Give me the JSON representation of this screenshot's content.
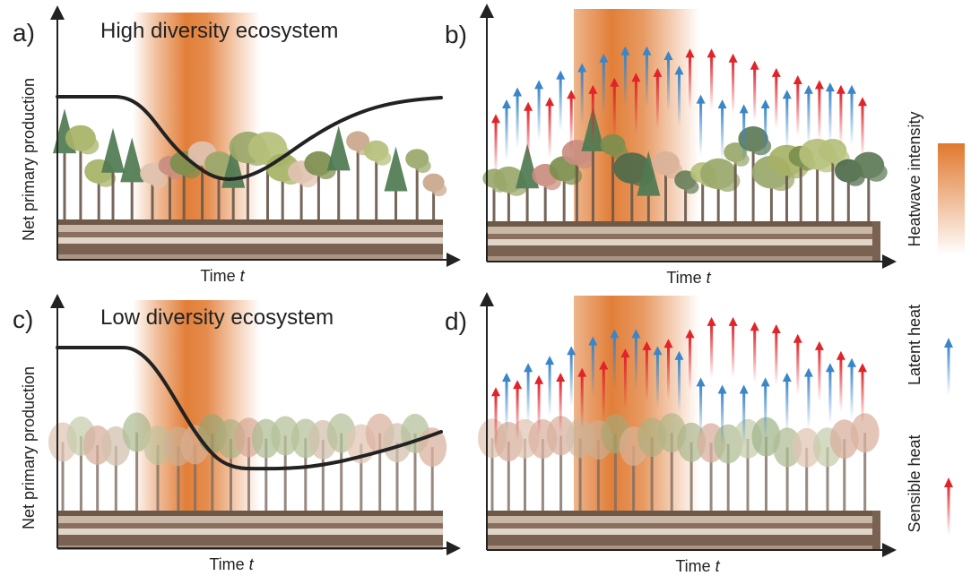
{
  "panels": [
    {
      "letter": "a)",
      "title": "High diversity ecosystem",
      "ylabel": "Net primary production",
      "xlabel": "Time",
      "xvar": "t"
    },
    {
      "letter": "b)",
      "title": "",
      "ylabel": "",
      "xlabel": "Time",
      "xvar": "t"
    },
    {
      "letter": "c)",
      "title": "Low diversity ecosystem",
      "ylabel": "Net primary production",
      "xlabel": "Time",
      "xvar": "t"
    },
    {
      "letter": "d)",
      "title": "",
      "ylabel": "",
      "xlabel": "Time",
      "xvar": "t"
    }
  ],
  "legend": {
    "heatwave": "Heatwave intensity",
    "latent": "Latent heat",
    "sensible": "Sensible heat"
  },
  "colors": {
    "heatwave": "#e0782e",
    "latent": "#3a86c8",
    "sensible": "#e0242a",
    "curve": "#222222",
    "soil": "#7a6252"
  },
  "flux_b": [
    {
      "type": "sensible",
      "level": 0.28
    },
    {
      "type": "latent",
      "level": 0.4
    },
    {
      "type": "latent",
      "level": 0.5
    },
    {
      "type": "sensible",
      "level": 0.38
    },
    {
      "type": "latent",
      "level": 0.56
    },
    {
      "type": "sensible",
      "level": 0.42
    },
    {
      "type": "latent",
      "level": 0.64
    },
    {
      "type": "sensible",
      "level": 0.48
    },
    {
      "type": "latent",
      "level": 0.7
    },
    {
      "type": "sensible",
      "level": 0.52
    },
    {
      "type": "latent",
      "level": 0.78
    },
    {
      "type": "sensible",
      "level": 0.58
    },
    {
      "type": "latent",
      "level": 0.84
    },
    {
      "type": "sensible",
      "level": 0.62
    },
    {
      "type": "latent",
      "level": 0.84
    },
    {
      "type": "sensible",
      "level": 0.66
    },
    {
      "type": "latent",
      "level": 0.8
    },
    {
      "type": "latent",
      "level": 0.68
    },
    {
      "type": "sensible",
      "level": 0.82
    },
    {
      "type": "latent",
      "level": 0.44
    },
    {
      "type": "sensible",
      "level": 0.82
    },
    {
      "type": "latent",
      "level": 0.4
    },
    {
      "type": "sensible",
      "level": 0.78
    },
    {
      "type": "latent",
      "level": 0.36
    },
    {
      "type": "sensible",
      "level": 0.72
    },
    {
      "type": "latent",
      "level": 0.4
    },
    {
      "type": "sensible",
      "level": 0.66
    },
    {
      "type": "latent",
      "level": 0.48
    },
    {
      "type": "sensible",
      "level": 0.6
    },
    {
      "type": "latent",
      "level": 0.52
    },
    {
      "type": "sensible",
      "level": 0.56
    },
    {
      "type": "latent",
      "level": 0.54
    },
    {
      "type": "sensible",
      "level": 0.52
    },
    {
      "type": "latent",
      "level": 0.52
    },
    {
      "type": "sensible",
      "level": 0.42
    }
  ],
  "flux_d": [
    {
      "type": "sensible",
      "level": 0.28
    },
    {
      "type": "latent",
      "level": 0.4
    },
    {
      "type": "sensible",
      "level": 0.34
    },
    {
      "type": "latent",
      "level": 0.48
    },
    {
      "type": "sensible",
      "level": 0.38
    },
    {
      "type": "latent",
      "level": 0.54
    },
    {
      "type": "sensible",
      "level": 0.4
    },
    {
      "type": "latent",
      "level": 0.62
    },
    {
      "type": "sensible",
      "level": 0.44
    },
    {
      "type": "latent",
      "level": 0.7
    },
    {
      "type": "sensible",
      "level": 0.5
    },
    {
      "type": "latent",
      "level": 0.76
    },
    {
      "type": "sensible",
      "level": 0.6
    },
    {
      "type": "latent",
      "level": 0.76
    },
    {
      "type": "sensible",
      "level": 0.66
    },
    {
      "type": "latent",
      "level": 0.62
    },
    {
      "type": "sensible",
      "level": 0.68
    },
    {
      "type": "latent",
      "level": 0.58
    },
    {
      "type": "sensible",
      "level": 0.76
    },
    {
      "type": "latent",
      "level": 0.36
    },
    {
      "type": "sensible",
      "level": 0.86
    },
    {
      "type": "latent",
      "level": 0.3
    },
    {
      "type": "sensible",
      "level": 0.86
    },
    {
      "type": "latent",
      "level": 0.3
    },
    {
      "type": "sensible",
      "level": 0.82
    },
    {
      "type": "latent",
      "level": 0.36
    },
    {
      "type": "sensible",
      "level": 0.8
    },
    {
      "type": "latent",
      "level": 0.4
    },
    {
      "type": "sensible",
      "level": 0.72
    },
    {
      "type": "latent",
      "level": 0.44
    },
    {
      "type": "sensible",
      "level": 0.66
    },
    {
      "type": "latent",
      "level": 0.48
    },
    {
      "type": "sensible",
      "level": 0.58
    },
    {
      "type": "latent",
      "level": 0.52
    },
    {
      "type": "sensible",
      "level": 0.48
    }
  ]
}
